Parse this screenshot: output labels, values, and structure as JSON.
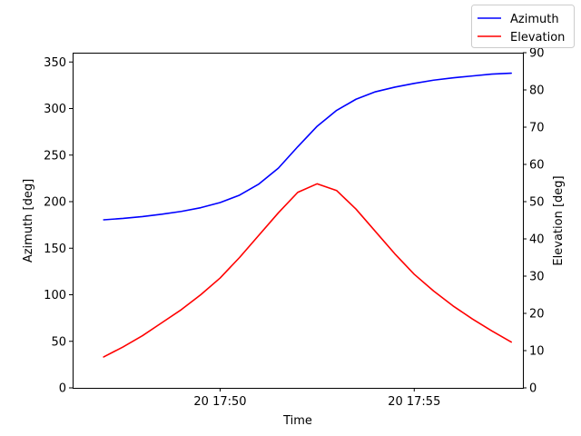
{
  "chart_data": {
    "type": "line",
    "x_axis": {
      "label": "Time",
      "tick_labels": [
        "20 17:50",
        "20 17:55"
      ],
      "tick_minutes": [
        50,
        55
      ],
      "xlim_minutes": [
        46.2,
        57.8
      ]
    },
    "y_left": {
      "label": "Azimuth [deg]",
      "ylim": [
        0,
        360
      ],
      "ticks": [
        0,
        50,
        100,
        150,
        200,
        250,
        300,
        350
      ]
    },
    "y_right": {
      "label": "Elevation [deg]",
      "ylim": [
        0,
        90
      ],
      "ticks": [
        0,
        10,
        20,
        30,
        40,
        50,
        60,
        70,
        80,
        90
      ]
    },
    "legend": {
      "placement": "top-right",
      "entries": [
        "Azimuth",
        "Elevation"
      ]
    },
    "series": [
      {
        "name": "Azimuth",
        "axis": "left",
        "color": "#0000ff",
        "x_minutes": [
          47.0,
          47.5,
          48.0,
          48.5,
          49.0,
          49.5,
          50.0,
          50.5,
          51.0,
          51.5,
          52.0,
          52.5,
          53.0,
          53.5,
          54.0,
          54.5,
          55.0,
          55.5,
          56.0,
          56.5,
          57.0,
          57.5
        ],
        "values": [
          180.5,
          182,
          184,
          186.5,
          189.5,
          193.5,
          199,
          207,
          219,
          236,
          259,
          281,
          298,
          310,
          318,
          323,
          327,
          330.5,
          333,
          335,
          337,
          338
        ]
      },
      {
        "name": "Elevation",
        "axis": "right",
        "color": "#ff0000",
        "x_minutes": [
          47.0,
          47.5,
          48.0,
          48.5,
          49.0,
          49.5,
          50.0,
          50.5,
          51.0,
          51.5,
          52.0,
          52.5,
          53.0,
          53.5,
          54.0,
          54.5,
          55.0,
          55.5,
          56.0,
          56.5,
          57.0,
          57.5
        ],
        "values": [
          8.3,
          11,
          14,
          17.5,
          21,
          25,
          29.5,
          35,
          41,
          47,
          52.5,
          54.8,
          53,
          48,
          42,
          36,
          30.5,
          26,
          22,
          18.5,
          15.3,
          12.3
        ]
      }
    ]
  }
}
